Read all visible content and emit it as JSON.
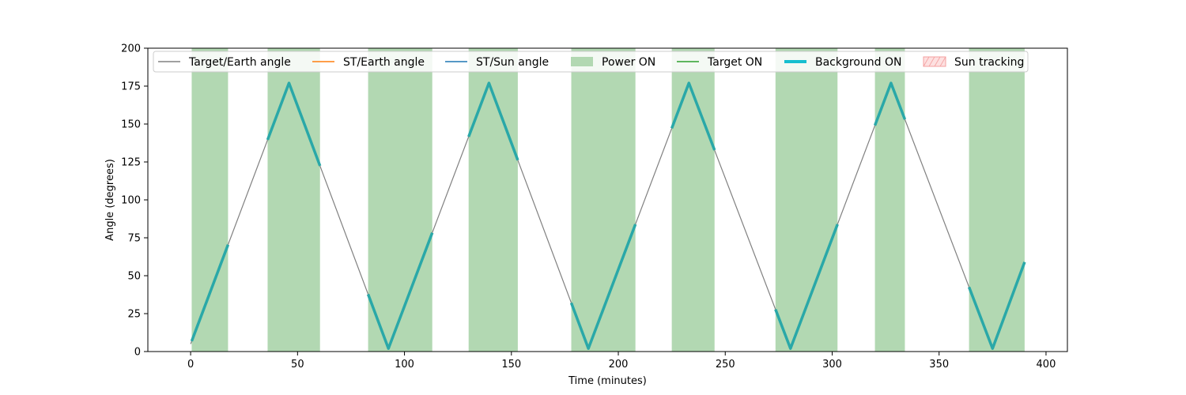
{
  "chart_data": {
    "type": "line",
    "xlabel": "Time (minutes)",
    "ylabel": "Angle (degrees)",
    "xlim": [
      -20,
      410
    ],
    "ylim": [
      0,
      200
    ],
    "xticks": [
      0,
      50,
      100,
      150,
      200,
      250,
      300,
      350,
      400
    ],
    "yticks": [
      0,
      25,
      50,
      75,
      100,
      125,
      150,
      175,
      200
    ],
    "grid": false,
    "legend_position": "top",
    "colors": {
      "target_earth": "#808080",
      "st_earth": "#ff7f0e",
      "st_sun": "#1f77b4",
      "power_on": "#b2d8b2",
      "target_on": "#2ca02c",
      "background_on": "#2aa8a8",
      "background_on_legend": "#17becf",
      "sun_tracking_fill": "#fde0e0",
      "sun_tracking_edge": "#f4a0a0"
    },
    "legend": [
      {
        "key": "target_earth",
        "label": "Target/Earth angle",
        "kind": "line"
      },
      {
        "key": "st_earth",
        "label": "ST/Earth angle",
        "kind": "line"
      },
      {
        "key": "st_sun",
        "label": "ST/Sun angle",
        "kind": "line"
      },
      {
        "key": "power_on",
        "label": "Power ON",
        "kind": "patch"
      },
      {
        "key": "target_on",
        "label": "Target ON",
        "kind": "line"
      },
      {
        "key": "background_on",
        "label": "Background ON",
        "kind": "thick"
      },
      {
        "key": "sun_tracking",
        "label": "Sun tracking",
        "kind": "hatch"
      }
    ],
    "series": [
      {
        "name": "Target/Earth angle",
        "x": [
          0,
          46,
          92.5,
          139.5,
          186,
          233,
          280.5,
          327.5,
          375,
          390
        ],
        "y": [
          5,
          177,
          2,
          177,
          2,
          177,
          2,
          177,
          2,
          59
        ]
      }
    ],
    "power_on_intervals": [
      [
        0.5,
        17.5
      ],
      [
        36,
        60.5
      ],
      [
        83,
        113
      ],
      [
        130,
        153
      ],
      [
        178,
        208
      ],
      [
        225,
        245
      ],
      [
        273.5,
        302.5
      ],
      [
        320,
        334
      ],
      [
        364,
        390
      ]
    ]
  }
}
